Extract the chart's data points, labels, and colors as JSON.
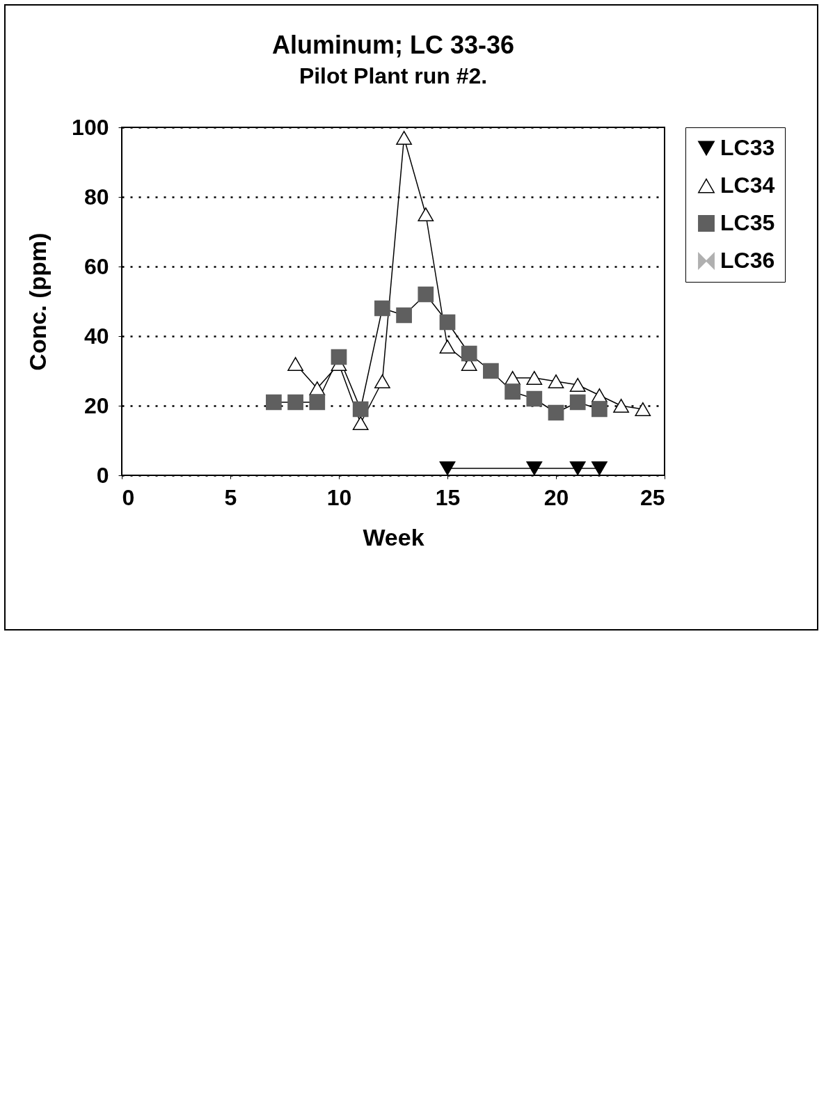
{
  "chart_data": {
    "type": "line",
    "title": "Aluminum; LC 33-36",
    "subtitle": "Pilot Plant run #2.",
    "xlabel": "Week",
    "ylabel": "Conc. (ppm)",
    "xlim": [
      0,
      25
    ],
    "xticks": [
      0,
      5,
      10,
      15,
      20,
      25
    ],
    "ylim": [
      0,
      100
    ],
    "yticks": [
      0,
      20,
      40,
      60,
      80,
      100
    ],
    "grid": "y",
    "legend": "right",
    "line_style": "solid",
    "series": [
      {
        "name": "LC33",
        "color": "#000000",
        "marker": "triangle-down",
        "x": [
          15,
          19,
          21,
          22
        ],
        "values": [
          2,
          2,
          2,
          2
        ]
      },
      {
        "name": "LC34",
        "color": "#000000",
        "marker": "triangle",
        "x": [
          8,
          9,
          10,
          11,
          12,
          13,
          14,
          15,
          16,
          17,
          18,
          19,
          20,
          21,
          22,
          23,
          24
        ],
        "values": [
          32,
          25,
          32,
          15,
          27,
          97,
          75,
          37,
          32,
          null,
          28,
          28,
          27,
          26,
          23,
          20,
          19
        ]
      },
      {
        "name": "LC35",
        "color": "#5f5f5f",
        "marker": "square",
        "x": [
          7,
          8,
          9,
          10,
          11,
          12,
          13,
          14,
          15,
          16,
          17,
          18,
          19,
          20,
          21,
          22
        ],
        "values": [
          21,
          21,
          21,
          34,
          19,
          48,
          46,
          52,
          44,
          35,
          30,
          24,
          22,
          18,
          21,
          19
        ]
      },
      {
        "name": "LC36",
        "color": "#b0b0b0",
        "marker": "cross"
      }
    ]
  }
}
